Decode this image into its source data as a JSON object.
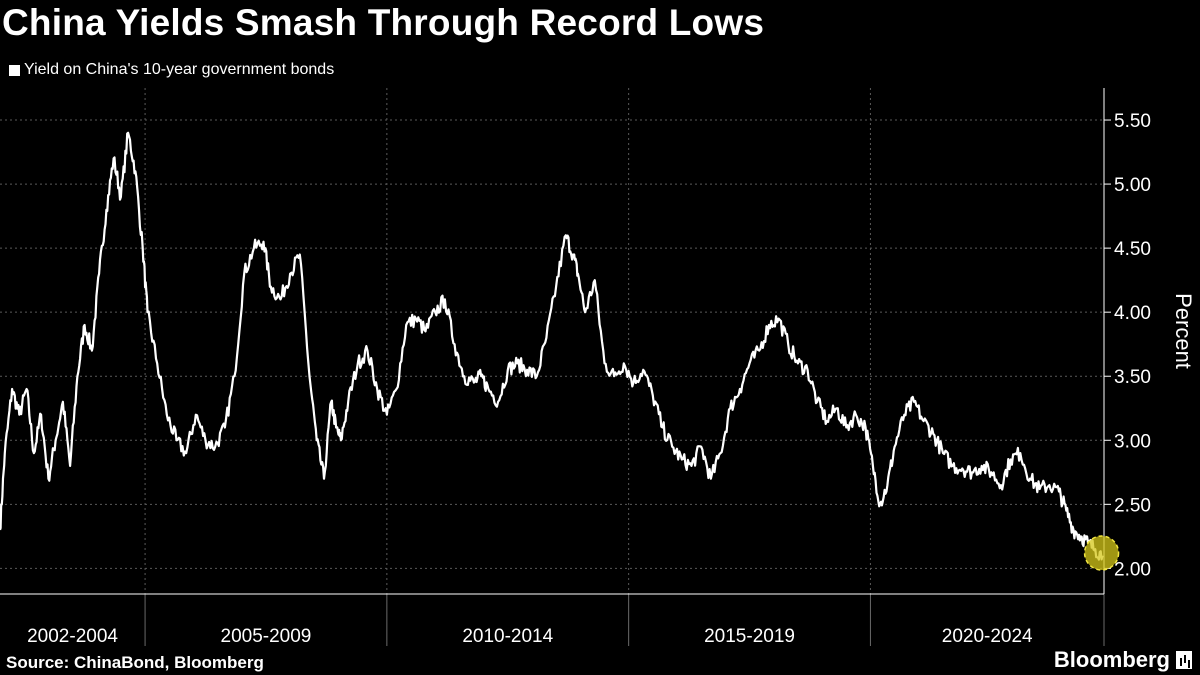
{
  "chart_data": {
    "type": "line",
    "title": "China Yields Smash Through Record Lows",
    "ylabel": "Percent",
    "ylim": [
      1.8,
      5.75
    ],
    "xlim": [
      2002.0,
      2024.83
    ],
    "grid": true,
    "y_ticks": [
      "5.50",
      "5.00",
      "4.50",
      "4.00",
      "3.50",
      "3.00",
      "2.50",
      "2.00"
    ],
    "x_periods": [
      {
        "label": "2002-2004",
        "start": 2002.0,
        "end": 2005.0
      },
      {
        "label": "2005-2009",
        "start": 2005.0,
        "end": 2010.0
      },
      {
        "label": "2010-2014",
        "start": 2010.0,
        "end": 2015.0
      },
      {
        "label": "2015-2019",
        "start": 2015.0,
        "end": 2020.0
      },
      {
        "label": "2020-2024",
        "start": 2020.0,
        "end": 2024.83
      }
    ],
    "series": [
      {
        "name": "Yield on China's 10-year government bonds",
        "color": "#ffffff",
        "x": [
          2002.0,
          2002.1,
          2002.25,
          2002.4,
          2002.55,
          2002.7,
          2002.85,
          2003.0,
          2003.15,
          2003.3,
          2003.45,
          2003.6,
          2003.75,
          2003.9,
          2004.05,
          2004.2,
          2004.35,
          2004.5,
          2004.65,
          2004.8,
          2004.95,
          2005.05,
          2005.25,
          2005.45,
          2005.65,
          2005.85,
          2006.05,
          2006.25,
          2006.45,
          2006.65,
          2006.85,
          2007.05,
          2007.25,
          2007.45,
          2007.6,
          2007.8,
          2008.0,
          2008.2,
          2008.4,
          2008.55,
          2008.7,
          2008.85,
          2008.95,
          2009.05,
          2009.2,
          2009.4,
          2009.6,
          2009.8,
          2010.0,
          2010.2,
          2010.4,
          2010.6,
          2010.8,
          2011.0,
          2011.2,
          2011.4,
          2011.6,
          2011.8,
          2011.95,
          2012.1,
          2012.3,
          2012.5,
          2012.7,
          2012.9,
          2013.1,
          2013.3,
          2013.5,
          2013.7,
          2013.85,
          2013.95,
          2014.1,
          2014.3,
          2014.5,
          2014.7,
          2014.9,
          2015.1,
          2015.3,
          2015.5,
          2015.7,
          2015.9,
          2016.1,
          2016.3,
          2016.5,
          2016.7,
          2016.9,
          2017.1,
          2017.3,
          2017.5,
          2017.7,
          2017.9,
          2018.1,
          2018.3,
          2018.5,
          2018.7,
          2018.9,
          2019.1,
          2019.3,
          2019.5,
          2019.7,
          2019.9,
          2020.05,
          2020.2,
          2020.35,
          2020.5,
          2020.7,
          2020.9,
          2021.1,
          2021.3,
          2021.5,
          2021.7,
          2021.9,
          2022.1,
          2022.3,
          2022.5,
          2022.7,
          2022.9,
          2023.1,
          2023.3,
          2023.5,
          2023.7,
          2023.9,
          2024.05,
          2024.2,
          2024.35,
          2024.5,
          2024.65,
          2024.8
        ],
        "values": [
          2.3,
          2.9,
          3.4,
          3.2,
          3.4,
          2.9,
          3.2,
          2.7,
          3.0,
          3.3,
          2.8,
          3.5,
          3.9,
          3.7,
          4.3,
          4.8,
          5.2,
          4.9,
          5.4,
          5.1,
          4.5,
          4.0,
          3.6,
          3.2,
          3.0,
          2.9,
          3.2,
          3.0,
          2.95,
          3.1,
          3.5,
          4.3,
          4.5,
          4.55,
          4.2,
          4.1,
          4.3,
          4.45,
          3.5,
          3.0,
          2.7,
          3.3,
          3.1,
          3.0,
          3.3,
          3.6,
          3.7,
          3.4,
          3.2,
          3.4,
          3.9,
          3.95,
          3.85,
          4.0,
          4.1,
          3.75,
          3.5,
          3.45,
          3.5,
          3.4,
          3.3,
          3.55,
          3.6,
          3.55,
          3.5,
          3.8,
          4.2,
          4.6,
          4.45,
          4.3,
          4.0,
          4.25,
          3.6,
          3.5,
          3.6,
          3.45,
          3.55,
          3.35,
          3.1,
          2.95,
          2.85,
          2.8,
          2.95,
          2.7,
          2.9,
          3.25,
          3.4,
          3.6,
          3.7,
          3.9,
          3.95,
          3.75,
          3.6,
          3.55,
          3.3,
          3.15,
          3.25,
          3.1,
          3.2,
          3.1,
          2.8,
          2.5,
          2.65,
          2.95,
          3.2,
          3.3,
          3.15,
          3.05,
          2.9,
          2.8,
          2.78,
          2.75,
          2.8,
          2.75,
          2.65,
          2.85,
          2.9,
          2.7,
          2.62,
          2.65,
          2.6,
          2.45,
          2.3,
          2.25,
          2.2,
          2.15,
          2.1
        ]
      }
    ],
    "highlight": {
      "x": 2024.78,
      "y": 2.12,
      "color": "#d6c81a"
    }
  },
  "footer": {
    "source": "Source: ChinaBond, Bloomberg",
    "brand": "Bloomberg"
  }
}
